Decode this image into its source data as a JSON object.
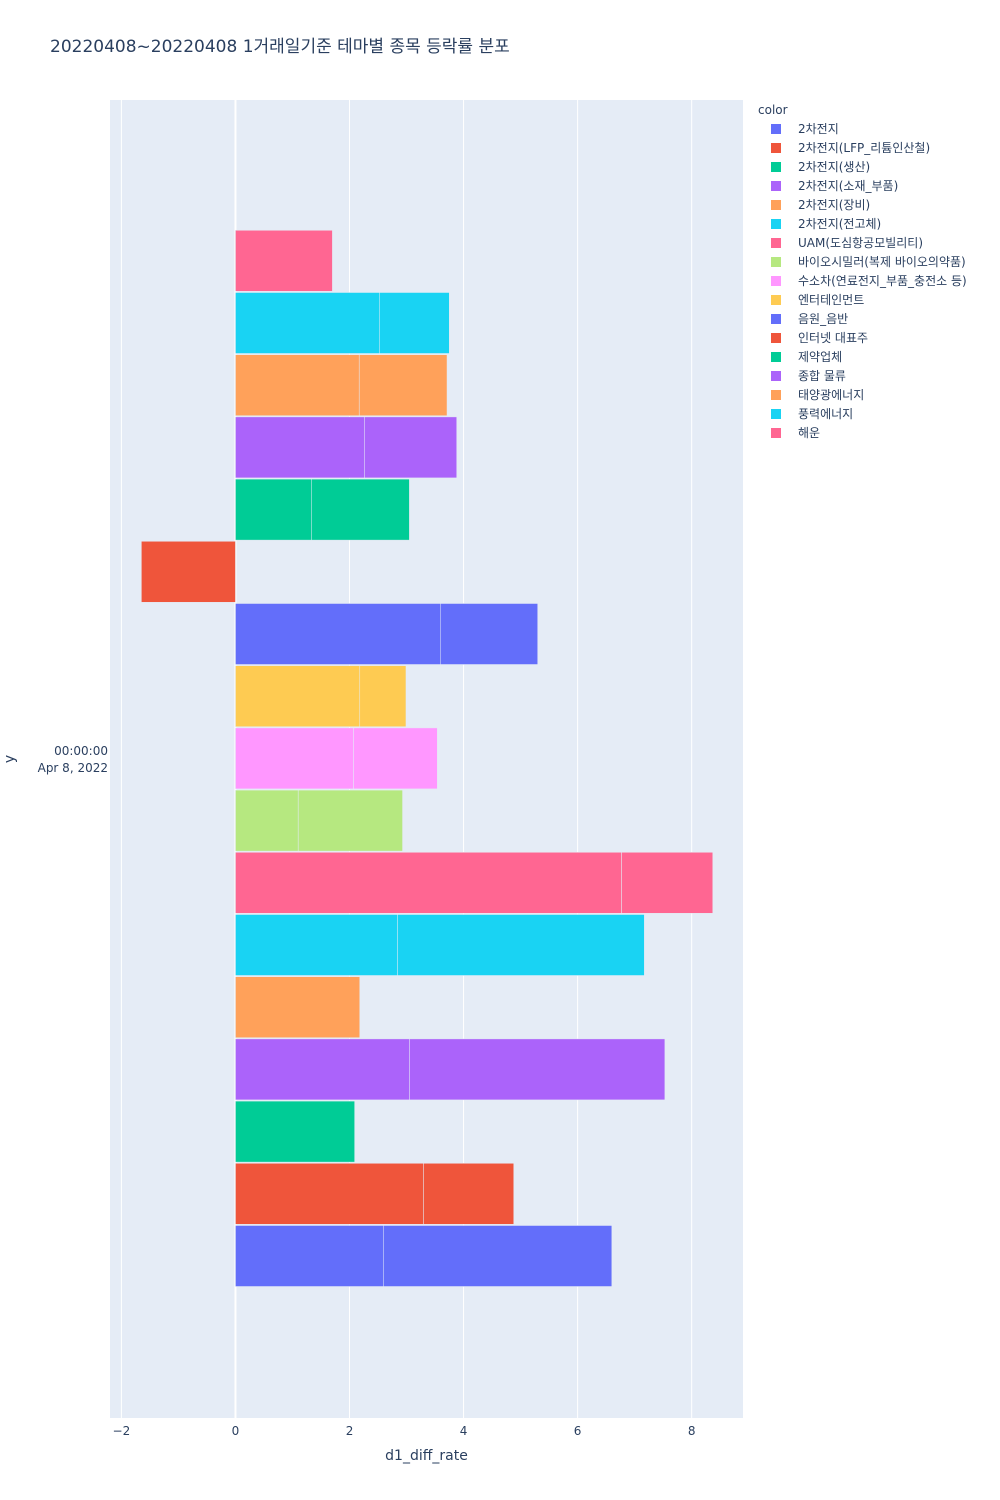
{
  "chart_data": {
    "type": "bar",
    "orientation": "horizontal",
    "barmode": "stack",
    "title": "20220408~20220408 1거래일기준 테마별 종목 등락률 분포",
    "xlabel": "d1_diff_rate",
    "ylabel": "y",
    "y_tick": {
      "time": "00:00:00",
      "date": "Apr 8, 2022"
    },
    "xlim": [
      -2.2,
      8.9
    ],
    "xticks": [
      "−2",
      "0",
      "2",
      "4",
      "6",
      "8"
    ],
    "xtick_values": [
      -2,
      0,
      2,
      4,
      6,
      8
    ],
    "legend_title": "color",
    "legend_position": "right",
    "plot_background": "#e5ecf6",
    "series": [
      {
        "name": "2차전지",
        "color": "#636efa",
        "segments": [
          2.6,
          4.0
        ]
      },
      {
        "name": "2차전지(LFP_리튬인산철)",
        "color": "#ef553b",
        "segments": [
          3.3,
          1.58
        ]
      },
      {
        "name": "2차전지(생산)",
        "color": "#00cc96",
        "segments": [
          2.09
        ]
      },
      {
        "name": "2차전지(소재_부품)",
        "color": "#ab63fa",
        "segments": [
          3.05,
          4.48
        ]
      },
      {
        "name": "2차전지(장비)",
        "color": "#ffa15a",
        "segments": [
          2.18
        ]
      },
      {
        "name": "2차전지(전고체)",
        "color": "#19d3f3",
        "segments": [
          2.84,
          4.33
        ]
      },
      {
        "name": "UAM(도심항공모빌리티)",
        "color": "#ff6692",
        "segments": [
          6.77,
          1.6
        ]
      },
      {
        "name": "바이오시밀러(복제 바이오의약품)",
        "color": "#b6e880",
        "segments": [
          1.1,
          1.83
        ]
      },
      {
        "name": "수소차(연료전지_부품_충전소 등)",
        "color": "#ff97ff",
        "segments": [
          2.07,
          1.47
        ]
      },
      {
        "name": "엔터테인먼트",
        "color": "#fecb52",
        "segments": [
          2.18,
          0.81
        ]
      },
      {
        "name": "음원_음반",
        "color": "#636efa",
        "segments": [
          3.6,
          1.7
        ]
      },
      {
        "name": "인터넷 대표주",
        "color": "#ef553b",
        "segments": [
          -1.65
        ]
      },
      {
        "name": "제약업체",
        "color": "#00cc96",
        "segments": [
          1.33,
          1.72
        ]
      },
      {
        "name": "종합 물류",
        "color": "#ab63fa",
        "segments": [
          2.26,
          1.62
        ]
      },
      {
        "name": "태양광에너지",
        "color": "#ffa15a",
        "segments": [
          2.17,
          1.54
        ]
      },
      {
        "name": "풍력에너지",
        "color": "#19d3f3",
        "segments": [
          2.53,
          1.22
        ]
      },
      {
        "name": "해운",
        "color": "#ff6692",
        "segments": [
          1.7
        ]
      }
    ]
  }
}
